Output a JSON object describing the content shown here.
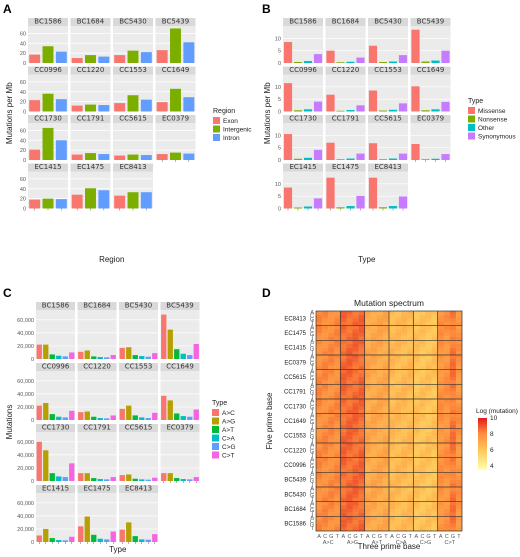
{
  "panel_labels": [
    "A",
    "B",
    "C",
    "D"
  ],
  "chart_data": [
    {
      "type": "bar",
      "panel": "A",
      "ylabel": "Mutations per Mb",
      "xlabel": "Region",
      "ylim": [
        0,
        75
      ],
      "yticks": [
        0,
        20,
        40,
        60
      ],
      "legend_title": "Region",
      "series": [
        {
          "name": "Exon",
          "color": "#F8766D"
        },
        {
          "name": "Intergenic",
          "color": "#7CAE00"
        },
        {
          "name": "Intron",
          "color": "#619CFF"
        }
      ],
      "facets": [
        {
          "name": "BC1586",
          "values": [
            17,
            34,
            23
          ]
        },
        {
          "name": "BC1684",
          "values": [
            10,
            16,
            13
          ]
        },
        {
          "name": "BC5430",
          "values": [
            16,
            25,
            22
          ]
        },
        {
          "name": "BC5439",
          "values": [
            26,
            70,
            42
          ]
        },
        {
          "name": "CC0996",
          "values": [
            23,
            36,
            25
          ]
        },
        {
          "name": "CC1220",
          "values": [
            12,
            14,
            13
          ]
        },
        {
          "name": "CC1553",
          "values": [
            17,
            33,
            24
          ]
        },
        {
          "name": "CC1649",
          "values": [
            19,
            46,
            29
          ]
        },
        {
          "name": "CC1730",
          "values": [
            21,
            65,
            40
          ]
        },
        {
          "name": "CC1791",
          "values": [
            11,
            14,
            12
          ]
        },
        {
          "name": "CC5615",
          "values": [
            9,
            11,
            10
          ]
        },
        {
          "name": "EC0379",
          "values": [
            12,
            15,
            13
          ]
        },
        {
          "name": "EC1415",
          "values": [
            18,
            20,
            19
          ]
        },
        {
          "name": "EC1475",
          "values": [
            28,
            41,
            37
          ]
        },
        {
          "name": "EC8413",
          "values": [
            26,
            33,
            33
          ]
        }
      ]
    },
    {
      "type": "bar",
      "panel": "B",
      "ylabel": "Mutations per Mb",
      "xlabel": "Type",
      "ylim": [
        0,
        15
      ],
      "yticks": [
        0,
        5,
        10
      ],
      "legend_title": "Type",
      "series": [
        {
          "name": "Missense",
          "color": "#F8766D"
        },
        {
          "name": "Nonsense",
          "color": "#7CAE00"
        },
        {
          "name": "Other",
          "color": "#00BFC4"
        },
        {
          "name": "Synonymous",
          "color": "#C77CFF"
        }
      ],
      "facets": [
        {
          "name": "BC1586",
          "values": [
            8.5,
            0.4,
            0.8,
            3.6
          ]
        },
        {
          "name": "BC1684",
          "values": [
            5.0,
            0.3,
            0.5,
            2.2
          ]
        },
        {
          "name": "BC5430",
          "values": [
            7.0,
            0.4,
            0.6,
            3.2
          ]
        },
        {
          "name": "BC5439",
          "values": [
            13.5,
            0.6,
            1.0,
            5.0
          ]
        },
        {
          "name": "CC0996",
          "values": [
            11.5,
            0.5,
            0.9,
            4.0
          ]
        },
        {
          "name": "CC1220",
          "values": [
            6.8,
            0.3,
            0.6,
            2.5
          ]
        },
        {
          "name": "CC1553",
          "values": [
            8.5,
            0.4,
            0.7,
            3.3
          ]
        },
        {
          "name": "CC1649",
          "values": [
            10.2,
            0.5,
            0.9,
            3.9
          ]
        },
        {
          "name": "CC1730",
          "values": [
            10.5,
            0.5,
            0.9,
            4.1
          ]
        },
        {
          "name": "CC1791",
          "values": [
            7.0,
            0.3,
            0.6,
            2.6
          ]
        },
        {
          "name": "CC5615",
          "values": [
            6.8,
            0.3,
            0.6,
            2.6
          ]
        },
        {
          "name": "EC0379",
          "values": [
            6.5,
            0.3,
            0.5,
            2.4
          ]
        },
        {
          "name": "EC1415",
          "values": [
            8.5,
            0.4,
            0.8,
            4.1
          ]
        },
        {
          "name": "EC1475",
          "values": [
            12.5,
            0.5,
            1.0,
            5.1
          ]
        },
        {
          "name": "EC8413",
          "values": [
            12.5,
            0.5,
            1.0,
            4.9
          ]
        }
      ]
    },
    {
      "type": "bar",
      "panel": "C",
      "ylabel": "Mutations",
      "xlabel": "Type",
      "ylim": [
        0,
        75000
      ],
      "yticks": [
        0,
        20000,
        40000,
        60000
      ],
      "ytick_labels": [
        "0",
        "20,000",
        "40,000",
        "60,000"
      ],
      "legend_title": "Type",
      "series": [
        {
          "name": "A>C",
          "color": "#F8766D"
        },
        {
          "name": "A>G",
          "color": "#B79F00"
        },
        {
          "name": "A>T",
          "color": "#00BA38"
        },
        {
          "name": "C>A",
          "color": "#00BFC4"
        },
        {
          "name": "C>G",
          "color": "#619CFF"
        },
        {
          "name": "C>T",
          "color": "#F564E3"
        }
      ],
      "facets": [
        {
          "name": "BC1586",
          "values": [
            22000,
            22000,
            7000,
            5000,
            4000,
            10000
          ]
        },
        {
          "name": "BC1684",
          "values": [
            11000,
            13000,
            4000,
            3000,
            2500,
            6000
          ]
        },
        {
          "name": "BC5430",
          "values": [
            17000,
            18000,
            6000,
            4500,
            3500,
            9000
          ]
        },
        {
          "name": "BC5439",
          "values": [
            68000,
            45000,
            15000,
            8000,
            6000,
            23000
          ]
        },
        {
          "name": "CC0996",
          "values": [
            22000,
            26000,
            9000,
            5000,
            4000,
            14000
          ]
        },
        {
          "name": "CC1220",
          "values": [
            12000,
            13000,
            5000,
            3000,
            2500,
            7000
          ]
        },
        {
          "name": "CC1553",
          "values": [
            17000,
            22000,
            7000,
            4000,
            3000,
            11000
          ]
        },
        {
          "name": "CC1649",
          "values": [
            37000,
            30000,
            10000,
            6000,
            5000,
            16000
          ]
        },
        {
          "name": "CC1730",
          "values": [
            60000,
            47000,
            12000,
            7000,
            6000,
            27000
          ]
        },
        {
          "name": "CC1791",
          "values": [
            12000,
            12000,
            4500,
            3000,
            2500,
            6000
          ]
        },
        {
          "name": "CC5615",
          "values": [
            9000,
            10000,
            3500,
            2500,
            2000,
            5000
          ]
        },
        {
          "name": "EC0379",
          "values": [
            12000,
            12000,
            4500,
            3000,
            2500,
            6000
          ]
        },
        {
          "name": "EC1415",
          "values": [
            10000,
            20000,
            6000,
            3000,
            2500,
            8000
          ]
        },
        {
          "name": "EC1475",
          "values": [
            24000,
            39000,
            11000,
            5000,
            4000,
            16000
          ]
        },
        {
          "name": "EC8413",
          "values": [
            19000,
            30000,
            9000,
            4000,
            3500,
            12000
          ]
        }
      ]
    },
    {
      "type": "heatmap",
      "panel": "D",
      "title": "Mutation spectrum",
      "xlabel": "Three prime base",
      "ylabel": "Five prime base",
      "legend_title": "Log (mutation)",
      "legend_ticks": [
        4,
        6,
        8,
        10
      ],
      "rows": [
        "EC8413",
        "EC1475",
        "EC1415",
        "EC0379",
        "CC5615",
        "CC1791",
        "CC1730",
        "CC1649",
        "CC1553",
        "CC1220",
        "CC0996",
        "BC5439",
        "BC5430",
        "BC1684",
        "BC1586"
      ],
      "row_sublabels": [
        "A",
        "C",
        "G",
        "T"
      ],
      "groups": [
        "A>C",
        "A>G",
        "A>T",
        "C>A",
        "C>G",
        "C>T"
      ],
      "columns": [
        "A",
        "C",
        "G",
        "T"
      ],
      "group_base_log": [
        7.8,
        8.5,
        6.9,
        6.3,
        6.0,
        7.6
      ]
    }
  ]
}
